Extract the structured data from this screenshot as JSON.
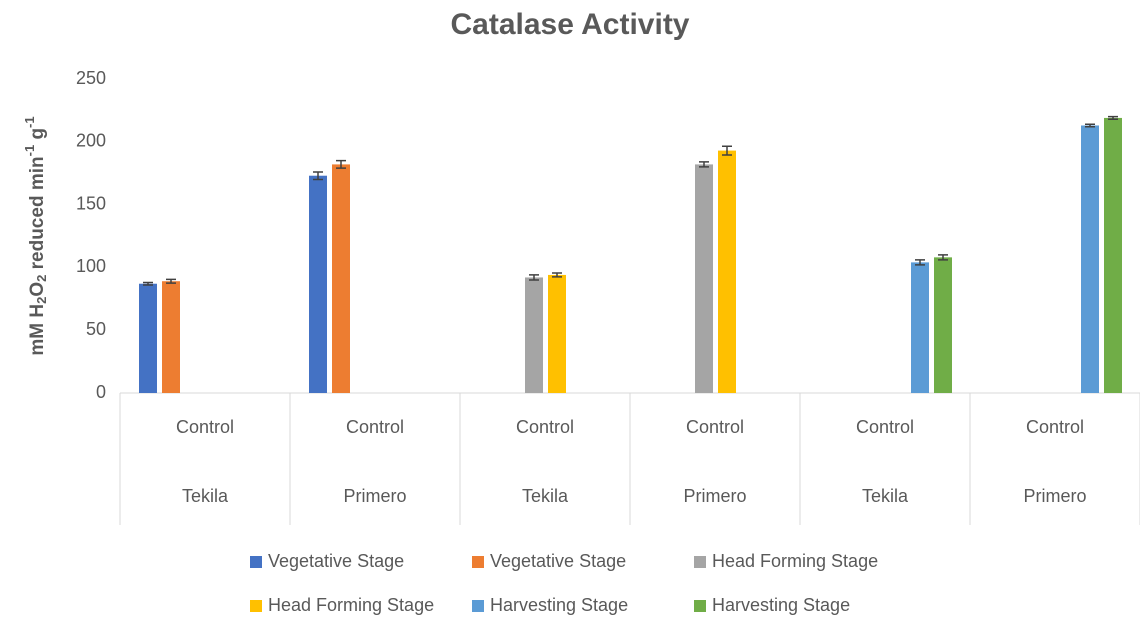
{
  "chart_data": {
    "type": "bar",
    "title": "Catalase Activity",
    "ylabel": [
      "mM H",
      "2",
      "O",
      "2",
      " reduced min",
      "-1",
      " g",
      "-1"
    ],
    "categories": [
      "Control",
      "Control",
      "Control",
      "Control",
      "Control",
      "Control"
    ],
    "groups": [
      "Tekila",
      "Primero",
      "Tekila",
      "Primero",
      "Tekila",
      "Primero"
    ],
    "series": [
      {
        "name": "Vegetative Stage",
        "color": "#4472c4",
        "values": [
          87,
          173,
          null,
          null,
          null,
          null
        ],
        "errors": [
          1,
          3,
          null,
          null,
          null,
          null
        ]
      },
      {
        "name": "Vegetative Stage",
        "color": "#ed7d31",
        "values": [
          89,
          182,
          null,
          null,
          null,
          null
        ],
        "errors": [
          1.5,
          3,
          null,
          null,
          null,
          null
        ]
      },
      {
        "name": "Head Forming Stage",
        "color": "#a5a5a5",
        "values": [
          null,
          null,
          92,
          182,
          null,
          null
        ],
        "errors": [
          null,
          null,
          2,
          2,
          null,
          null
        ]
      },
      {
        "name": "Head Forming Stage",
        "color": "#ffc000",
        "values": [
          null,
          null,
          94,
          193,
          null,
          null
        ],
        "errors": [
          null,
          null,
          1.5,
          3.5,
          null,
          null
        ]
      },
      {
        "name": "Harvesting Stage",
        "color": "#5b9bd5",
        "values": [
          null,
          null,
          null,
          null,
          104,
          213
        ],
        "errors": [
          null,
          null,
          null,
          null,
          2,
          1
        ]
      },
      {
        "name": "Harvesting Stage",
        "color": "#70ad47",
        "values": [
          null,
          null,
          null,
          null,
          108,
          219
        ],
        "errors": [
          null,
          null,
          null,
          null,
          2,
          1
        ]
      }
    ],
    "ylim": [
      0,
      250
    ],
    "yticks": [
      0,
      50,
      100,
      150,
      200,
      250
    ],
    "grid": false
  }
}
